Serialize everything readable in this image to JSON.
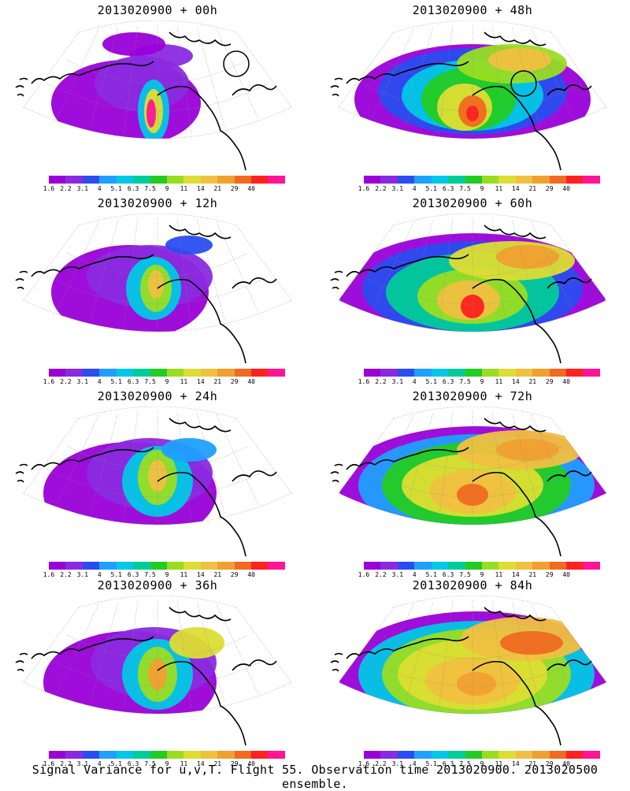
{
  "panels": [
    {
      "title": "2013020900 + 00h"
    },
    {
      "title": "2013020900 + 48h"
    },
    {
      "title": "2013020900 + 12h"
    },
    {
      "title": "2013020900 + 60h"
    },
    {
      "title": "2013020900 + 24h"
    },
    {
      "title": "2013020900 + 72h"
    },
    {
      "title": "2013020900 + 36h"
    },
    {
      "title": "2013020900 + 84h"
    }
  ],
  "colorbar": {
    "labels": [
      "1.6",
      "2.2",
      "3.1",
      "4",
      "5.1",
      "6.3",
      "7.5",
      "9",
      "11",
      "14",
      "21",
      "29",
      "40"
    ],
    "colors": [
      "#9a00d8",
      "#8a2ae0",
      "#2a4df0",
      "#1fa0ff",
      "#00c8e6",
      "#00cc99",
      "#22cc22",
      "#99dd22",
      "#dddd33",
      "#f0c040",
      "#f0a030",
      "#f06a20",
      "#ff2020",
      "#ff1493"
    ]
  },
  "caption": "Signal Variance for u,v,T. Flight 55. Observation time 2013020900. 2013020500 ensemble."
}
